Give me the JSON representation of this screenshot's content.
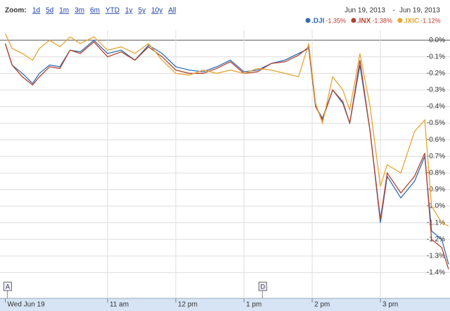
{
  "toolbar": {
    "zoom_label": "Zoom:",
    "ranges": [
      "1d",
      "5d",
      "1m",
      "3m",
      "6m",
      "YTD",
      "1y",
      "5y",
      "10y",
      "All"
    ],
    "date_from": "Jun 19, 2013",
    "date_sep": "-",
    "date_to": "Jun 19, 2013"
  },
  "chart_data": {
    "type": "line",
    "x": [
      9.5,
      9.6,
      9.75,
      9.9,
      10.0,
      10.15,
      10.3,
      10.45,
      10.6,
      10.8,
      11.0,
      11.2,
      11.4,
      11.6,
      11.8,
      12.0,
      12.2,
      12.4,
      12.6,
      12.8,
      13.0,
      13.2,
      13.4,
      13.6,
      13.8,
      13.95,
      14.05,
      14.15,
      14.3,
      14.45,
      14.55,
      14.7,
      14.85,
      15.0,
      15.1,
      15.3,
      15.5,
      15.65,
      15.75,
      15.9,
      16.0
    ],
    "series": [
      {
        "name": ".DJI",
        "change": "-1.35%",
        "color": "#2f6db5",
        "values": [
          -0.02,
          -0.15,
          -0.2,
          -0.26,
          -0.2,
          -0.15,
          -0.16,
          -0.06,
          -0.07,
          0.0,
          -0.08,
          -0.06,
          -0.12,
          -0.03,
          -0.08,
          -0.16,
          -0.18,
          -0.19,
          -0.16,
          -0.12,
          -0.19,
          -0.18,
          -0.14,
          -0.12,
          -0.08,
          -0.05,
          -0.4,
          -0.47,
          -0.3,
          -0.38,
          -0.5,
          -0.15,
          -0.55,
          -1.1,
          -0.82,
          -0.95,
          -0.85,
          -0.7,
          -1.15,
          -1.2,
          -1.35
        ]
      },
      {
        "name": ".INX",
        "change": "-1.38%",
        "color": "#b5432e",
        "values": [
          -0.02,
          -0.15,
          -0.22,
          -0.27,
          -0.22,
          -0.16,
          -0.17,
          -0.06,
          -0.08,
          -0.01,
          -0.1,
          -0.07,
          -0.12,
          -0.04,
          -0.1,
          -0.18,
          -0.2,
          -0.2,
          -0.17,
          -0.13,
          -0.2,
          -0.19,
          -0.14,
          -0.13,
          -0.09,
          -0.04,
          -0.4,
          -0.48,
          -0.3,
          -0.37,
          -0.5,
          -0.12,
          -0.55,
          -1.08,
          -0.8,
          -0.92,
          -0.82,
          -0.68,
          -1.2,
          -1.25,
          -1.38
        ]
      },
      {
        "name": ".IXIC",
        "change": "-1.12%",
        "color": "#e6a532",
        "values": [
          0.04,
          -0.05,
          -0.08,
          -0.12,
          -0.05,
          0.0,
          -0.04,
          0.02,
          -0.02,
          0.02,
          -0.06,
          -0.04,
          -0.08,
          -0.02,
          -0.12,
          -0.2,
          -0.21,
          -0.18,
          -0.2,
          -0.18,
          -0.2,
          -0.17,
          -0.18,
          -0.2,
          -0.22,
          -0.02,
          -0.38,
          -0.5,
          -0.22,
          -0.3,
          -0.42,
          -0.08,
          -0.4,
          -0.88,
          -0.75,
          -0.8,
          -0.55,
          -0.48,
          -1.0,
          -1.1,
          -1.12
        ]
      }
    ],
    "xlim": [
      9.5,
      16
    ],
    "xticks": [
      {
        "value": 9.5,
        "label": "Wed Jun 19"
      },
      {
        "value": 11,
        "label": "11 am"
      },
      {
        "value": 12,
        "label": "12 pm"
      },
      {
        "value": 13,
        "label": "1 pm"
      },
      {
        "value": 14,
        "label": "2 pm"
      },
      {
        "value": 15,
        "label": "3 pm"
      }
    ],
    "ylim": [
      -1.43,
      0.06
    ],
    "yticks": [
      {
        "value": 0,
        "label": "0.0%"
      },
      {
        "value": -0.1,
        "label": "-0.1%"
      },
      {
        "value": -0.2,
        "label": "-0.2%"
      },
      {
        "value": -0.3,
        "label": "-0.3%"
      },
      {
        "value": -0.4,
        "label": "-0.4%"
      },
      {
        "value": -0.5,
        "label": "-0.5%"
      },
      {
        "value": -0.6,
        "label": "-0.6%"
      },
      {
        "value": -0.7,
        "label": "-0.7%"
      },
      {
        "value": -0.8,
        "label": "-0.8%"
      },
      {
        "value": -0.9,
        "label": "-0.9%"
      },
      {
        "value": -1.0,
        "label": "-1.0%"
      },
      {
        "value": -1.1,
        "label": "-1.1%"
      },
      {
        "value": -1.2,
        "label": "-1.2%"
      },
      {
        "value": -1.3,
        "label": "-1.3%"
      },
      {
        "value": -1.4,
        "label": "-1.4%"
      }
    ],
    "grid": true,
    "annotations": [
      {
        "label": "A",
        "x": 9.53
      },
      {
        "label": "D",
        "x": 13.27
      }
    ]
  }
}
